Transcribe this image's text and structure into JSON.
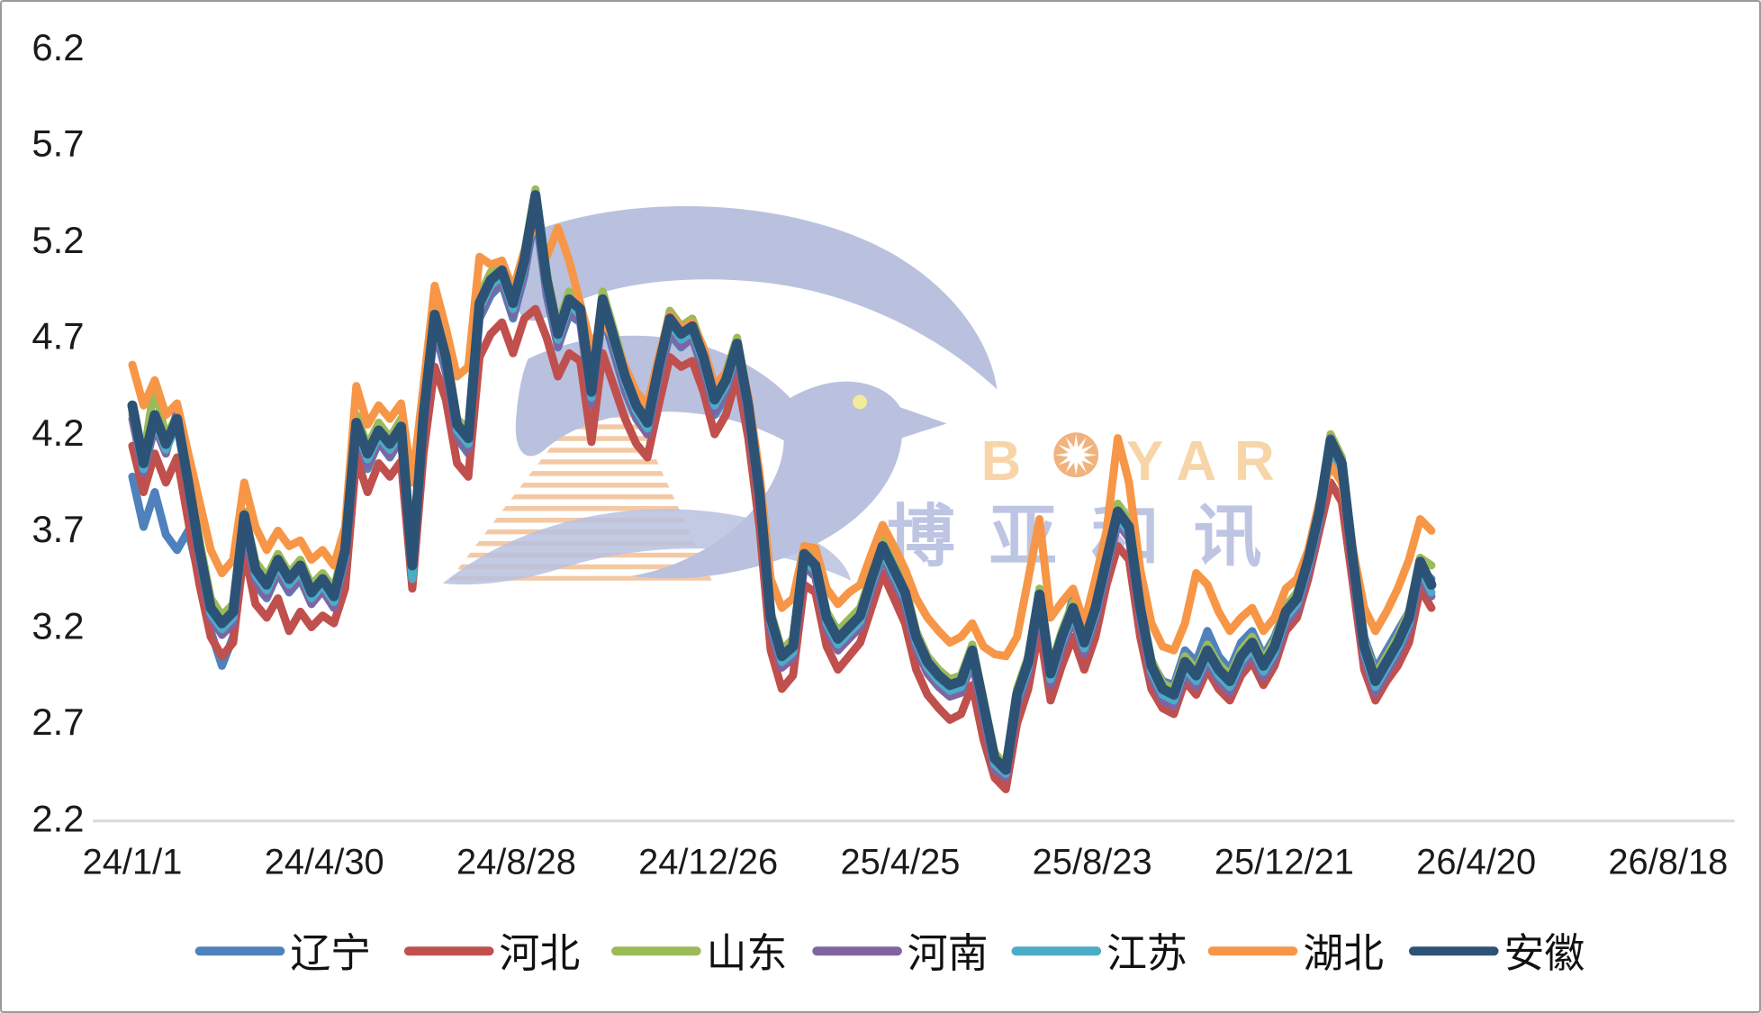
{
  "chart_data": {
    "type": "line",
    "title": "",
    "grid": "off",
    "legend_position": "bottom",
    "y_axis": {
      "min": 2.2,
      "max": 6.2,
      "step": 0.5,
      "tick_labels": [
        "6.2",
        "5.7",
        "5.2",
        "4.7",
        "4.2",
        "3.7",
        "3.2",
        "2.7",
        "2.2"
      ]
    },
    "x_axis": {
      "tick_labels": [
        "24/1/1",
        "24/4/30",
        "24/8/28",
        "24/12/26",
        "25/4/25",
        "25/8/23",
        "25/12/21",
        "26/4/20",
        "26/8/18"
      ],
      "days_per_tick": 120
    },
    "sample_interval_days": 7,
    "series": [
      {
        "name": "辽宁",
        "key": "liaoning",
        "color": "#4F81BD",
        "values": [
          3.98,
          3.72,
          3.9,
          3.68,
          3.6,
          3.7,
          3.45,
          3.18,
          3.0,
          3.15,
          3.7,
          3.42,
          3.35,
          3.48,
          3.38,
          3.45,
          3.32,
          3.4,
          3.3,
          3.55,
          4.2,
          4.02,
          4.16,
          4.08,
          4.18,
          3.45,
          4.22,
          4.75,
          4.52,
          4.18,
          4.1,
          4.8,
          4.92,
          4.98,
          4.8,
          5.02,
          5.35,
          4.92,
          4.65,
          4.82,
          4.78,
          4.35,
          4.82,
          4.62,
          4.42,
          4.28,
          4.2,
          4.48,
          4.72,
          4.65,
          4.7,
          4.52,
          4.3,
          4.4,
          4.6,
          4.28,
          3.82,
          3.18,
          3.0,
          3.05,
          3.52,
          3.46,
          3.18,
          3.08,
          3.15,
          3.2,
          3.4,
          3.65,
          3.45,
          3.32,
          3.1,
          2.96,
          2.9,
          2.85,
          2.88,
          3.02,
          2.75,
          2.52,
          2.5,
          2.82,
          3.0,
          3.3,
          2.92,
          3.12,
          3.36,
          3.1,
          3.28,
          3.52,
          3.75,
          3.68,
          3.28,
          3.02,
          2.92,
          2.9,
          3.08,
          3.02,
          3.18,
          3.05,
          2.98,
          3.12,
          3.18,
          3.05,
          3.15,
          3.3,
          3.38,
          3.55,
          3.78,
          4.15,
          4.02,
          3.58,
          3.15,
          2.98,
          3.08,
          3.18,
          3.28,
          3.5,
          3.45
        ]
      },
      {
        "name": "河北",
        "key": "hebei",
        "color": "#C0504D",
        "values": [
          4.14,
          3.9,
          4.1,
          3.95,
          4.08,
          3.75,
          3.42,
          3.15,
          3.05,
          3.12,
          3.6,
          3.32,
          3.25,
          3.35,
          3.18,
          3.28,
          3.2,
          3.26,
          3.22,
          3.4,
          4.08,
          3.9,
          4.05,
          3.98,
          4.06,
          3.4,
          4.1,
          4.55,
          4.38,
          4.05,
          3.98,
          4.6,
          4.72,
          4.78,
          4.62,
          4.8,
          4.85,
          4.7,
          4.5,
          4.62,
          4.58,
          4.16,
          4.62,
          4.45,
          4.28,
          4.15,
          4.08,
          4.35,
          4.6,
          4.55,
          4.58,
          4.42,
          4.2,
          4.3,
          4.5,
          4.18,
          3.72,
          3.08,
          2.88,
          2.95,
          3.42,
          3.38,
          3.1,
          2.98,
          3.05,
          3.12,
          3.3,
          3.48,
          3.35,
          3.22,
          2.98,
          2.85,
          2.78,
          2.72,
          2.75,
          2.9,
          2.62,
          2.42,
          2.36,
          2.7,
          2.88,
          3.2,
          2.82,
          3.0,
          3.15,
          2.98,
          3.15,
          3.42,
          3.62,
          3.55,
          3.15,
          2.88,
          2.78,
          2.75,
          2.92,
          2.85,
          2.98,
          2.88,
          2.82,
          2.95,
          3.02,
          2.9,
          3.0,
          3.18,
          3.25,
          3.45,
          3.7,
          3.95,
          3.85,
          3.42,
          2.98,
          2.82,
          2.92,
          3.0,
          3.12,
          3.4,
          3.3
        ]
      },
      {
        "name": "山东",
        "key": "shandong",
        "color": "#9BBB59",
        "values": [
          4.3,
          4.08,
          4.46,
          4.18,
          4.3,
          4.0,
          3.65,
          3.35,
          3.26,
          3.32,
          3.8,
          3.54,
          3.46,
          3.58,
          3.48,
          3.55,
          3.42,
          3.48,
          3.4,
          3.64,
          4.3,
          4.14,
          4.26,
          4.18,
          4.28,
          3.58,
          4.34,
          4.85,
          4.64,
          4.28,
          4.22,
          4.92,
          5.04,
          5.1,
          4.92,
          5.14,
          5.47,
          5.04,
          4.76,
          4.94,
          4.88,
          4.46,
          4.94,
          4.74,
          4.54,
          4.38,
          4.3,
          4.58,
          4.84,
          4.76,
          4.8,
          4.64,
          4.42,
          4.52,
          4.7,
          4.38,
          3.94,
          3.28,
          3.08,
          3.14,
          3.62,
          3.55,
          3.28,
          3.18,
          3.24,
          3.3,
          3.48,
          3.66,
          3.53,
          3.42,
          3.18,
          3.05,
          2.98,
          2.93,
          2.95,
          3.11,
          2.83,
          2.55,
          2.48,
          2.88,
          3.05,
          3.4,
          2.99,
          3.18,
          3.33,
          3.15,
          3.33,
          3.58,
          3.84,
          3.75,
          3.33,
          3.03,
          2.91,
          2.88,
          3.05,
          2.98,
          3.11,
          3.01,
          2.95,
          3.08,
          3.15,
          3.03,
          3.13,
          3.31,
          3.38,
          3.58,
          3.83,
          4.2,
          4.08,
          3.58,
          3.13,
          2.95,
          3.05,
          3.15,
          3.28,
          3.56,
          3.52
        ]
      },
      {
        "name": "河南",
        "key": "henan",
        "color": "#8064A2",
        "values": [
          4.28,
          4.0,
          4.24,
          4.1,
          4.32,
          3.9,
          3.55,
          3.25,
          3.16,
          3.22,
          3.72,
          3.44,
          3.36,
          3.49,
          3.39,
          3.46,
          3.32,
          3.39,
          3.3,
          3.54,
          4.2,
          4.04,
          4.16,
          4.09,
          4.18,
          3.46,
          4.24,
          4.76,
          4.54,
          4.19,
          4.12,
          4.82,
          4.94,
          4.99,
          4.82,
          5.04,
          5.38,
          4.94,
          4.66,
          4.84,
          4.79,
          4.36,
          4.84,
          4.64,
          4.44,
          4.29,
          4.2,
          4.49,
          4.74,
          4.66,
          4.7,
          4.54,
          4.32,
          4.42,
          4.61,
          4.29,
          3.84,
          3.19,
          2.99,
          3.04,
          3.52,
          3.46,
          3.19,
          3.08,
          3.14,
          3.2,
          3.39,
          3.56,
          3.44,
          3.32,
          3.09,
          2.96,
          2.89,
          2.84,
          2.86,
          3.02,
          2.74,
          2.46,
          2.42,
          2.79,
          2.96,
          3.31,
          2.9,
          3.09,
          3.24,
          3.06,
          3.24,
          3.49,
          3.74,
          3.66,
          3.24,
          2.94,
          2.82,
          2.79,
          2.96,
          2.89,
          3.02,
          2.92,
          2.86,
          2.99,
          3.06,
          2.94,
          3.04,
          3.22,
          3.29,
          3.49,
          3.74,
          4.18,
          3.99,
          3.49,
          3.04,
          2.86,
          2.96,
          3.06,
          3.19,
          3.48,
          3.36
        ]
      },
      {
        "name": "江苏",
        "key": "jiangsu",
        "color": "#4BACC6",
        "values": [
          4.32,
          4.02,
          4.27,
          4.12,
          4.25,
          3.92,
          3.57,
          3.27,
          3.19,
          3.25,
          3.75,
          3.47,
          3.39,
          3.52,
          3.42,
          3.49,
          3.35,
          3.42,
          3.33,
          3.57,
          4.23,
          4.07,
          4.19,
          4.12,
          4.21,
          3.45,
          4.27,
          4.79,
          4.57,
          4.22,
          4.15,
          4.85,
          4.97,
          5.02,
          4.85,
          5.07,
          5.41,
          4.97,
          4.69,
          4.87,
          4.82,
          4.39,
          4.87,
          4.67,
          4.47,
          4.32,
          4.23,
          4.52,
          4.77,
          4.69,
          4.73,
          4.57,
          4.35,
          4.45,
          4.64,
          4.32,
          3.87,
          3.22,
          3.02,
          3.07,
          3.55,
          3.49,
          3.22,
          3.11,
          3.17,
          3.23,
          3.42,
          3.59,
          3.47,
          3.35,
          3.12,
          2.99,
          2.92,
          2.87,
          2.89,
          3.05,
          2.77,
          2.49,
          2.44,
          2.82,
          2.99,
          3.34,
          2.93,
          3.12,
          3.27,
          3.09,
          3.27,
          3.52,
          3.77,
          3.69,
          3.27,
          2.97,
          2.85,
          2.82,
          2.99,
          2.92,
          3.05,
          2.95,
          2.89,
          3.02,
          3.09,
          2.97,
          3.07,
          3.25,
          3.32,
          3.52,
          3.77,
          4.12,
          4.0,
          3.52,
          3.07,
          2.89,
          2.99,
          3.09,
          3.22,
          3.51,
          3.38
        ]
      },
      {
        "name": "湖北",
        "key": "hubei",
        "color": "#F79646",
        "values": [
          4.56,
          4.35,
          4.48,
          4.3,
          4.36,
          4.1,
          3.85,
          3.6,
          3.48,
          3.55,
          3.95,
          3.72,
          3.6,
          3.7,
          3.62,
          3.65,
          3.55,
          3.6,
          3.52,
          3.72,
          4.45,
          4.25,
          4.35,
          4.28,
          4.36,
          3.95,
          4.45,
          4.97,
          4.75,
          4.5,
          4.55,
          5.12,
          5.08,
          5.1,
          4.95,
          5.15,
          5.3,
          5.12,
          5.27,
          5.1,
          4.88,
          4.65,
          4.78,
          4.7,
          4.55,
          4.42,
          4.35,
          4.6,
          4.82,
          4.75,
          4.78,
          4.65,
          4.45,
          4.52,
          4.65,
          4.4,
          4.0,
          3.45,
          3.3,
          3.35,
          3.62,
          3.61,
          3.4,
          3.32,
          3.38,
          3.42,
          3.58,
          3.73,
          3.62,
          3.5,
          3.35,
          3.25,
          3.18,
          3.12,
          3.15,
          3.22,
          3.1,
          3.06,
          3.05,
          3.15,
          3.45,
          3.76,
          3.25,
          3.33,
          3.4,
          3.22,
          3.45,
          3.7,
          4.18,
          3.95,
          3.5,
          3.22,
          3.1,
          3.08,
          3.22,
          3.48,
          3.42,
          3.28,
          3.18,
          3.25,
          3.3,
          3.18,
          3.25,
          3.4,
          3.45,
          3.6,
          3.85,
          4.04,
          3.95,
          3.6,
          3.3,
          3.18,
          3.28,
          3.4,
          3.55,
          3.76,
          3.7
        ]
      },
      {
        "name": "安徽",
        "key": "anhui",
        "color": "#2C5376",
        "values": [
          4.35,
          4.05,
          4.3,
          4.15,
          4.28,
          3.95,
          3.6,
          3.3,
          3.22,
          3.28,
          3.78,
          3.5,
          3.42,
          3.55,
          3.45,
          3.52,
          3.38,
          3.45,
          3.36,
          3.6,
          4.26,
          4.1,
          4.22,
          4.15,
          4.24,
          3.52,
          4.3,
          4.82,
          4.6,
          4.25,
          4.18,
          4.88,
          5.0,
          5.05,
          4.88,
          5.1,
          5.44,
          5.0,
          4.72,
          4.9,
          4.85,
          4.42,
          4.9,
          4.7,
          4.5,
          4.35,
          4.26,
          4.55,
          4.8,
          4.72,
          4.76,
          4.6,
          4.38,
          4.48,
          4.67,
          4.35,
          3.9,
          3.25,
          3.05,
          3.1,
          3.58,
          3.52,
          3.25,
          3.14,
          3.2,
          3.26,
          3.45,
          3.62,
          3.5,
          3.38,
          3.15,
          3.02,
          2.95,
          2.9,
          2.92,
          3.08,
          2.8,
          2.52,
          2.46,
          2.85,
          3.02,
          3.37,
          2.96,
          3.15,
          3.3,
          3.12,
          3.3,
          3.55,
          3.8,
          3.72,
          3.3,
          3.0,
          2.88,
          2.85,
          3.02,
          2.95,
          3.08,
          2.98,
          2.92,
          3.05,
          3.12,
          3.0,
          3.1,
          3.28,
          3.35,
          3.55,
          3.8,
          4.17,
          4.05,
          3.55,
          3.1,
          2.92,
          3.02,
          3.12,
          3.25,
          3.54,
          3.42
        ]
      }
    ]
  },
  "watermark": {
    "latin_b": "B",
    "latin_yar": "YAR",
    "cjk": "博亚和讯"
  }
}
